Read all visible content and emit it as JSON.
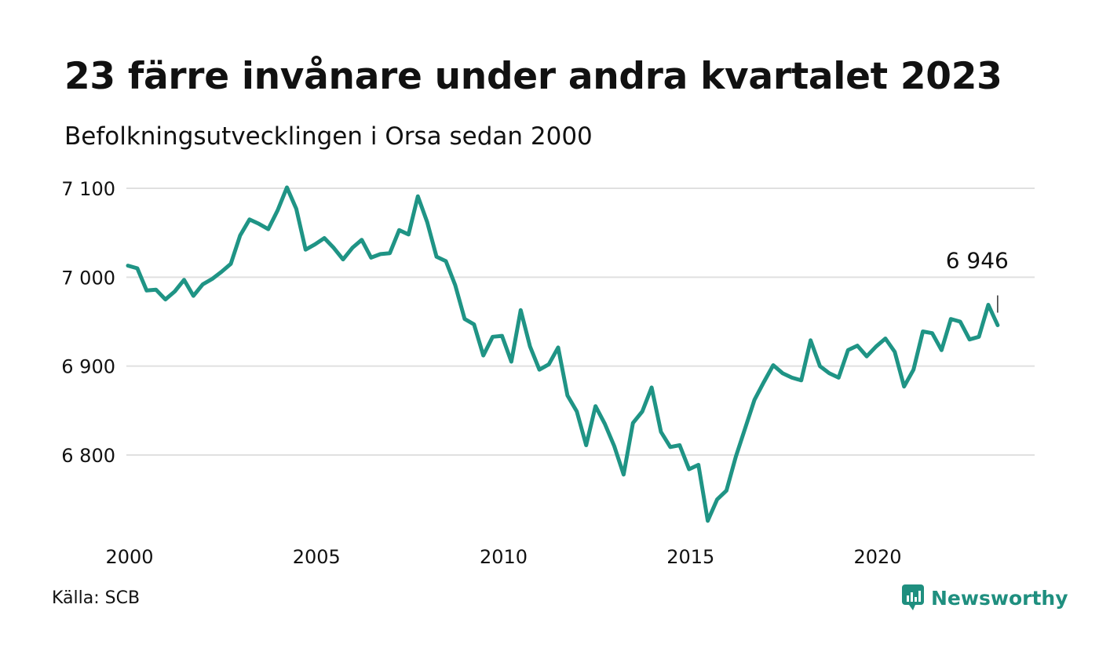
{
  "header": {
    "title": "23 färre invånare under andra kvartalet 2023",
    "subtitle": "Befolkningsutvecklingen i Orsa sedan 2000"
  },
  "footer": {
    "source": "Källa: SCB",
    "brand": "Newsworthy",
    "brand_icon": "bar-chart-speech-bubble-icon"
  },
  "colors": {
    "line": "#1f9485",
    "grid": "#e0e0e0",
    "brand": "#1f8f7f"
  },
  "chart_data": {
    "type": "line",
    "title": "23 färre invånare under andra kvartalet 2023",
    "subtitle": "Befolkningsutvecklingen i Orsa sedan 2000",
    "xlabel": "",
    "ylabel": "",
    "x_ticks": [
      2000,
      2005,
      2010,
      2015,
      2020
    ],
    "x_tick_labels": [
      "2000",
      "2005",
      "2010",
      "2015",
      "2020"
    ],
    "y_ticks": [
      6800,
      6900,
      7000,
      7100
    ],
    "y_tick_labels": [
      "6 800",
      "6 900",
      "7 000",
      "7 100"
    ],
    "xlim": [
      2000,
      2023.5
    ],
    "ylim": [
      6730,
      7100
    ],
    "grid": true,
    "legend": "none",
    "last_label": "6 946",
    "series": [
      {
        "name": "",
        "x": [
          2000,
          2000.25,
          2000.5,
          2000.75,
          2001,
          2001.25,
          2001.5,
          2001.75,
          2002,
          2002.25,
          2002.5,
          2002.75,
          2003,
          2003.25,
          2003.5,
          2003.75,
          2004,
          2004.25,
          2004.5,
          2004.75,
          2005,
          2005.25,
          2005.5,
          2005.75,
          2006,
          2006.25,
          2006.5,
          2006.75,
          2007,
          2007.25,
          2007.5,
          2007.75,
          2008,
          2008.25,
          2008.5,
          2008.75,
          2009,
          2009.25,
          2009.5,
          2009.75,
          2010,
          2010.25,
          2010.5,
          2010.75,
          2011,
          2011.25,
          2011.5,
          2011.75,
          2012,
          2012.25,
          2012.5,
          2012.75,
          2013,
          2013.25,
          2013.5,
          2013.75,
          2014,
          2014.25,
          2014.5,
          2014.75,
          2015,
          2015.25,
          2015.5,
          2015.75,
          2016,
          2016.25,
          2016.5,
          2016.75,
          2017,
          2017.25,
          2017.5,
          2017.75,
          2018,
          2018.25,
          2018.5,
          2018.75,
          2019,
          2019.25,
          2019.5,
          2019.75,
          2020,
          2020.25,
          2020.5,
          2020.75,
          2021,
          2021.25,
          2021.5,
          2021.75,
          2022,
          2022.25,
          2022.5,
          2022.75,
          2023,
          2023.25
        ],
        "values": [
          7013,
          7010,
          6985,
          6986,
          6975,
          6984,
          6997,
          6979,
          6992,
          6998,
          7006,
          7015,
          7047,
          7065,
          7060,
          7054,
          7075,
          7101,
          7077,
          7031,
          7037,
          7044,
          7033,
          7020,
          7033,
          7042,
          7022,
          7026,
          7027,
          7053,
          7048,
          7091,
          7062,
          7023,
          7018,
          6991,
          6953,
          6947,
          6912,
          6933,
          6934,
          6905,
          6963,
          6922,
          6896,
          6902,
          6921,
          6867,
          6849,
          6811,
          6855,
          6835,
          6810,
          6778,
          6836,
          6849,
          6876,
          6826,
          6809,
          6811,
          6784,
          6789,
          6726,
          6750,
          6760,
          6798,
          6830,
          6862,
          6882,
          6901,
          6892,
          6887,
          6884,
          6929,
          6900,
          6892,
          6887,
          6918,
          6923,
          6911,
          6922,
          6931,
          6916,
          6877,
          6896,
          6939,
          6937,
          6918,
          6953,
          6950,
          6930,
          6933,
          6969,
          6946
        ]
      }
    ]
  }
}
